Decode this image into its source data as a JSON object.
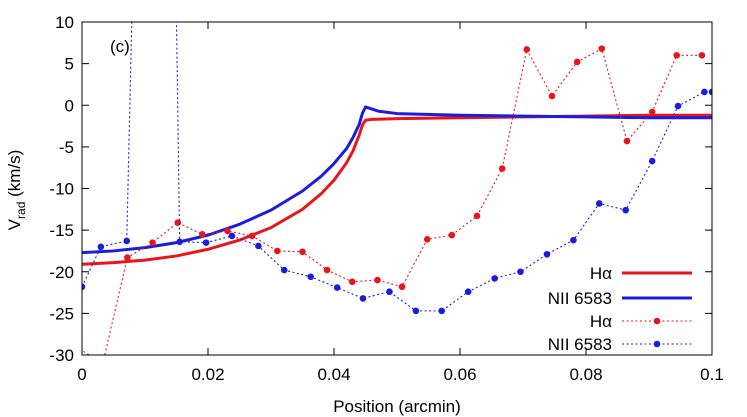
{
  "chart_data": {
    "type": "line",
    "panel_label": "(c)",
    "xlabel": "Position (arcmin)",
    "ylabel_main": "V",
    "ylabel_sub": "rad",
    "ylabel_unit": " (km/s)",
    "xlim": [
      0,
      0.1
    ],
    "ylim": [
      -30,
      10
    ],
    "xticks": [
      0,
      0.02,
      0.04,
      0.06,
      0.08,
      0.1
    ],
    "xtick_labels": [
      "0",
      "0.02",
      "0.04",
      "0.06",
      "0.08",
      "0.1"
    ],
    "yticks": [
      -30,
      -25,
      -20,
      -15,
      -10,
      -5,
      0,
      5,
      10
    ],
    "ytick_labels": [
      "-30",
      "-25",
      "-20",
      "-15",
      "-10",
      "-5",
      "0",
      "5",
      "10"
    ],
    "grid": false,
    "legend_position": "bottom-right",
    "colors": {
      "red": "#e8161b",
      "blue": "#1c1ce0"
    },
    "series": [
      {
        "name": "Hα",
        "style": "solid",
        "color": "#e8161b",
        "x": [
          0,
          0.005,
          0.01,
          0.015,
          0.02,
          0.025,
          0.03,
          0.035,
          0.038,
          0.04,
          0.042,
          0.043,
          0.044,
          0.0445,
          0.045,
          0.046,
          0.05,
          0.06,
          0.07,
          0.08,
          0.09,
          0.1
        ],
        "y": [
          -19.1,
          -18.9,
          -18.6,
          -18.1,
          -17.3,
          -16.2,
          -14.7,
          -12.5,
          -10.6,
          -9.0,
          -6.9,
          -5.5,
          -3.6,
          -2.4,
          -1.8,
          -1.7,
          -1.6,
          -1.5,
          -1.4,
          -1.3,
          -1.2,
          -1.2
        ]
      },
      {
        "name": "NII 6583",
        "style": "solid",
        "color": "#1c1ce0",
        "x": [
          0,
          0.005,
          0.01,
          0.015,
          0.02,
          0.025,
          0.03,
          0.035,
          0.038,
          0.04,
          0.042,
          0.043,
          0.044,
          0.0445,
          0.045,
          0.047,
          0.05,
          0.06,
          0.07,
          0.08,
          0.09,
          0.1
        ],
        "y": [
          -17.7,
          -17.5,
          -17.1,
          -16.5,
          -15.6,
          -14.3,
          -12.6,
          -10.3,
          -8.5,
          -7.0,
          -5.2,
          -3.9,
          -2.3,
          -1.0,
          -0.2,
          -0.7,
          -1.0,
          -1.2,
          -1.3,
          -1.4,
          -1.5,
          -1.5
        ]
      },
      {
        "name": "Hα",
        "style": "dotted-markers",
        "color": "#e8161b",
        "x": [
          -0.001,
          0.0033,
          0.0072,
          0.0112,
          0.0152,
          0.0191,
          0.0231,
          0.027,
          0.031,
          0.035,
          0.0389,
          0.0429,
          0.0469,
          0.0508,
          0.0548,
          0.0587,
          0.0627,
          0.0667,
          0.0706,
          0.0746,
          0.0786,
          0.0825,
          0.0865,
          0.0905,
          0.0944,
          0.0984
        ],
        "y": [
          -29,
          -31,
          -18.3,
          -16.5,
          -14.1,
          -15.5,
          -15.1,
          -15.7,
          -17.5,
          -17.6,
          -19.8,
          -21.2,
          -21.0,
          -21.8,
          -16.1,
          -15.6,
          -13.3,
          -7.6,
          6.7,
          1.1,
          5.2,
          6.8,
          -4.3,
          -0.8,
          6.0,
          6.0
        ],
        "note_x": [
          0.0,
          0.0062,
          0.0112,
          0.0156,
          0.0198,
          0.024,
          0.0281,
          0.0323,
          0.0365,
          0.0406,
          0.0448,
          0.049,
          0.0531,
          0.0573,
          0.0615,
          0.0656,
          0.0698,
          0.074,
          0.0781,
          0.0823,
          0.0865,
          0.0906,
          0.0948,
          0.099
        ]
      },
      {
        "name": "NII 6583",
        "style": "dotted-markers",
        "color": "#1c1ce0",
        "x": [
          0.0,
          0.003,
          0.0071,
          0.0079,
          0.015,
          0.0155,
          0.0197,
          0.0238,
          0.028,
          0.0321,
          0.0363,
          0.0405,
          0.0446,
          0.0488,
          0.053,
          0.0571,
          0.0613,
          0.0655,
          0.0696,
          0.0738,
          0.078,
          0.0821,
          0.0863,
          0.0905,
          0.0946,
          0.0988,
          0.1
        ],
        "y": [
          -21.8,
          -17.0,
          -16.3,
          10.0,
          10.0,
          -16.4,
          -16.5,
          -15.7,
          -16.9,
          -19.8,
          -20.6,
          -21.9,
          -23.2,
          -22.4,
          -24.7,
          -24.7,
          -22.4,
          -20.8,
          -20.0,
          -17.9,
          -16.2,
          -11.8,
          -12.6,
          -6.7,
          -0.1,
          1.6,
          1.6
        ]
      }
    ]
  }
}
